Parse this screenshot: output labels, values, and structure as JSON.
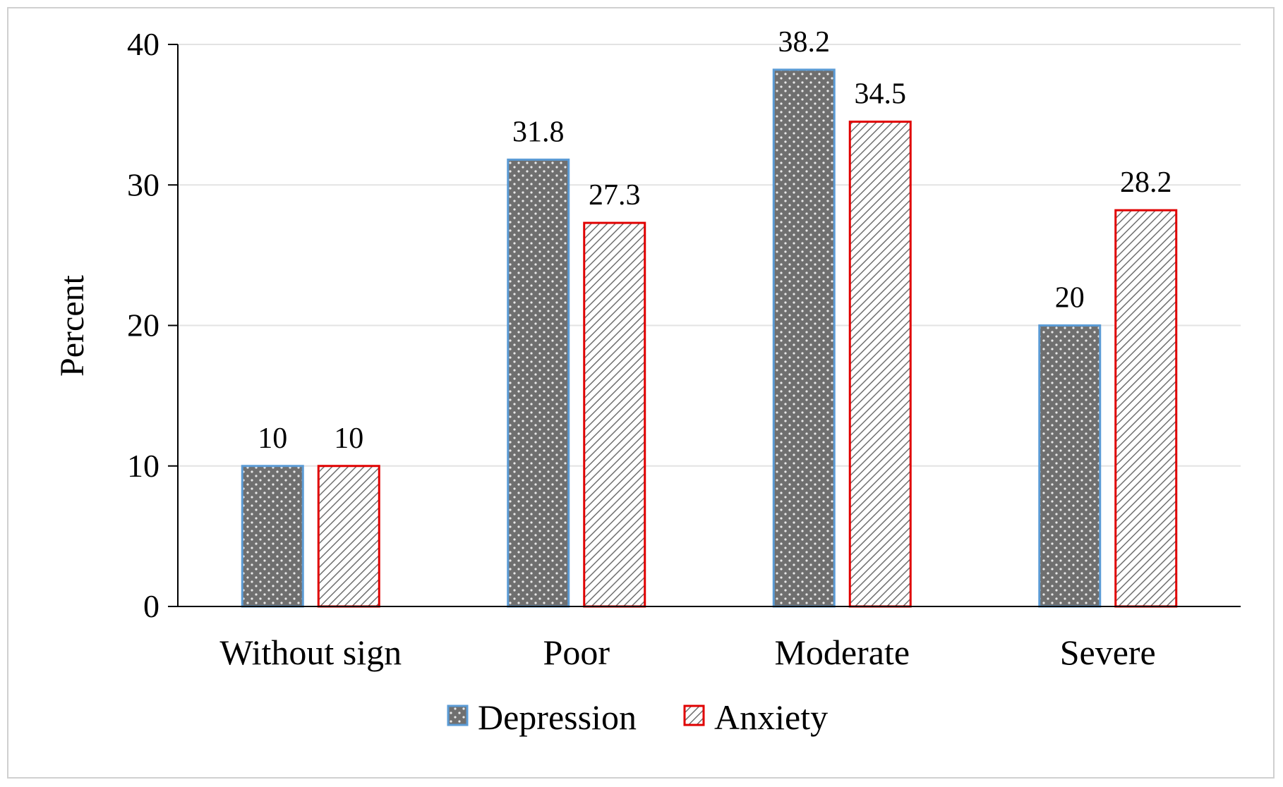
{
  "chart_data": {
    "type": "bar",
    "categories": [
      "Without sign",
      "Poor",
      "Moderate",
      "Severe"
    ],
    "series": [
      {
        "name": "Depression",
        "values": [
          10,
          31.8,
          38.2,
          20
        ],
        "fill": "#707070",
        "stroke": "#5b9bd5",
        "pattern": "dots"
      },
      {
        "name": "Anxiety",
        "values": [
          10,
          27.3,
          34.5,
          28.2
        ],
        "fill": "#ffffff",
        "stroke": "#e00000",
        "pattern": "diagonal-hatch"
      }
    ],
    "data_labels": [
      [
        "10",
        "31.8",
        "38.2",
        "20"
      ],
      [
        "10",
        "27.3",
        "34.5",
        "28.2"
      ]
    ],
    "ylabel": "Percent",
    "xlabel": "",
    "ylim": [
      0,
      40
    ],
    "yticks": [
      "0",
      "10",
      "20",
      "30",
      "40"
    ],
    "grid": true,
    "legend_position": "bottom"
  }
}
